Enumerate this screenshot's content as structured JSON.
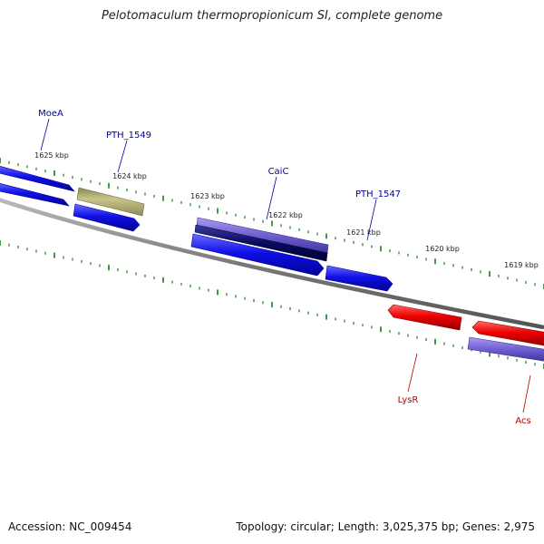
{
  "title": "Pelotomaculum thermopropionicum SI, complete genome",
  "footer": {
    "accession": "Accession: NC_009454",
    "summary": "Topology: circular; Length: 3,025,375 bp; Genes: 2,975"
  },
  "colors": {
    "backbone": "#888888",
    "tick": "#1a7a1a",
    "forward_gene": "#1010e0",
    "reverse_gene": "#e00000",
    "hypothetical_gene": "#b8b478",
    "purple_gene": "#7a6ad0",
    "navy_gene": "#0a0a60",
    "label_blue": "#0000a0",
    "label_red": "#c00000"
  },
  "scale_labels": [
    "1625 kbp",
    "1624 kbp",
    "1623 kbp",
    "1622 kbp",
    "1621 kbp",
    "1620 kbp",
    "1619 kbp"
  ],
  "genes": [
    {
      "name": "MoeA",
      "strand": "forward"
    },
    {
      "name": "PTH_1549",
      "strand": "forward"
    },
    {
      "name": "CaiC",
      "strand": "forward"
    },
    {
      "name": "PTH_1547",
      "strand": "forward"
    },
    {
      "name": "LysR",
      "strand": "reverse"
    },
    {
      "name": "Acs",
      "strand": "reverse"
    }
  ]
}
